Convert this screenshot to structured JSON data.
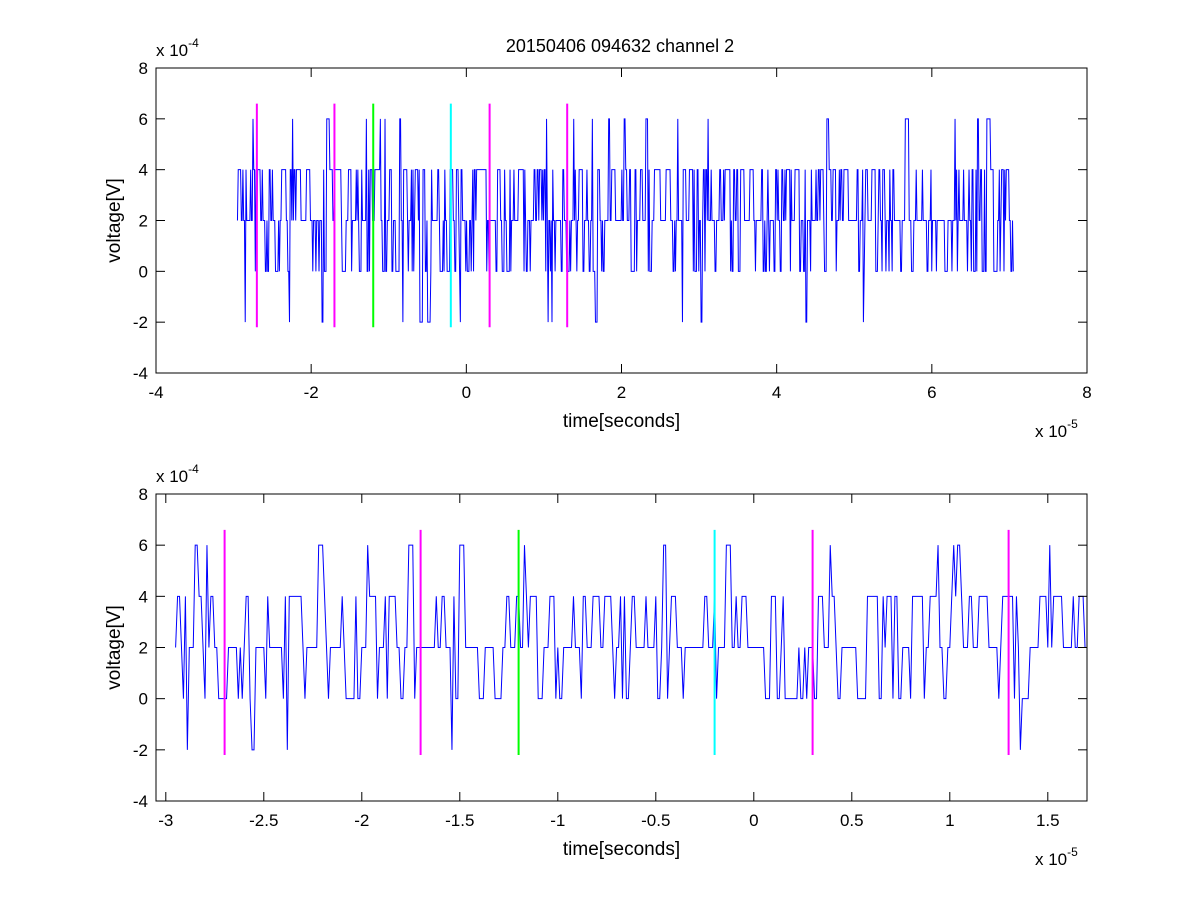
{
  "figure_title": "20150406 094632 channel 2",
  "colors": {
    "signal": "#0000ff",
    "magenta": "#ff00ff",
    "green": "#00ff00",
    "cyan": "#00ffff",
    "axes": "#000000"
  },
  "chart_data": [
    {
      "type": "line",
      "title": "20150406 094632 channel 2",
      "xlabel": "time[seconds]",
      "ylabel": "voltage[V]",
      "x_multiplier_label": "x 10",
      "x_multiplier_exp": "-5",
      "y_multiplier_label": "x 10",
      "y_multiplier_exp": "-4",
      "xlim": [
        -4,
        8
      ],
      "ylim": [
        -4,
        8
      ],
      "x_ticks": [
        -4,
        -2,
        0,
        2,
        4,
        6,
        8
      ],
      "x_tick_labels": [
        "-4",
        "-2",
        "0",
        "2",
        "4",
        "6",
        "8"
      ],
      "y_ticks": [
        -4,
        -2,
        0,
        2,
        4,
        6,
        8
      ],
      "y_tick_labels": [
        "-4",
        "-2",
        "0",
        "2",
        "4",
        "6",
        "8"
      ],
      "grid": false,
      "series": [
        {
          "color": "#0000ff",
          "x_start": -2.95,
          "x_end": 7.05,
          "n_samples": 1000,
          "levels": [
            -2,
            0,
            2,
            4,
            6
          ],
          "baseline": 2
        }
      ],
      "vertical_markers": [
        {
          "x": -2.7,
          "color": "#ff00ff",
          "y_range": [
            -2.2,
            6.6
          ]
        },
        {
          "x": -1.7,
          "color": "#ff00ff",
          "y_range": [
            -2.2,
            6.6
          ]
        },
        {
          "x": -1.2,
          "color": "#00ff00",
          "y_range": [
            -2.2,
            6.6
          ]
        },
        {
          "x": -0.2,
          "color": "#00ffff",
          "y_range": [
            -2.2,
            6.6
          ]
        },
        {
          "x": 0.3,
          "color": "#ff00ff",
          "y_range": [
            -2.2,
            6.6
          ]
        },
        {
          "x": 1.3,
          "color": "#ff00ff",
          "y_range": [
            -2.2,
            6.6
          ]
        }
      ]
    },
    {
      "type": "line",
      "title": "",
      "xlabel": "time[seconds]",
      "ylabel": "voltage[V]",
      "x_multiplier_label": "x 10",
      "x_multiplier_exp": "-5",
      "y_multiplier_label": "x 10",
      "y_multiplier_exp": "-4",
      "xlim": [
        -3.05,
        1.7
      ],
      "ylim": [
        -4,
        8
      ],
      "x_ticks": [
        -3,
        -2.5,
        -2,
        -1.5,
        -1,
        -0.5,
        0,
        0.5,
        1,
        1.5
      ],
      "x_tick_labels": [
        "-3",
        "-2.5",
        "-2",
        "-1.5",
        "-1",
        "-0.5",
        "0",
        "0.5",
        "1",
        "1.5"
      ],
      "y_ticks": [
        -4,
        -2,
        0,
        2,
        4,
        6,
        8
      ],
      "y_tick_labels": [
        "-4",
        "-2",
        "0",
        "2",
        "4",
        "6",
        "8"
      ],
      "grid": false,
      "series": [
        {
          "color": "#0000ff",
          "x_start": -2.95,
          "x_end": 1.7,
          "n_samples": 466,
          "levels": [
            -2,
            0,
            2,
            4,
            6
          ],
          "baseline": 2
        }
      ],
      "vertical_markers": [
        {
          "x": -2.7,
          "color": "#ff00ff",
          "y_range": [
            -2.2,
            6.6
          ]
        },
        {
          "x": -1.7,
          "color": "#ff00ff",
          "y_range": [
            -2.2,
            6.6
          ]
        },
        {
          "x": -1.2,
          "color": "#00ff00",
          "y_range": [
            -2.2,
            6.6
          ]
        },
        {
          "x": -0.2,
          "color": "#00ffff",
          "y_range": [
            -2.2,
            6.6
          ]
        },
        {
          "x": 0.3,
          "color": "#ff00ff",
          "y_range": [
            -2.2,
            6.6
          ]
        },
        {
          "x": 1.3,
          "color": "#ff00ff",
          "y_range": [
            -2.2,
            6.6
          ]
        }
      ]
    }
  ]
}
